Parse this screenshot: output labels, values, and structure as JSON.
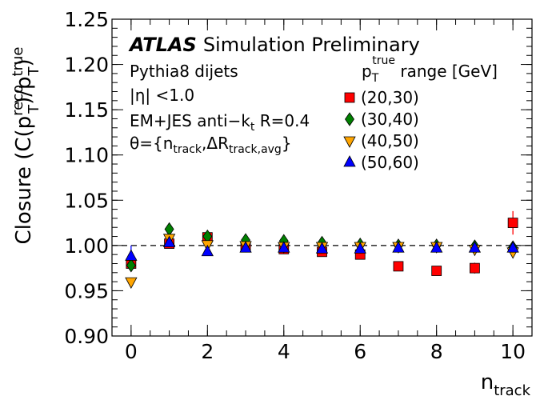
{
  "chart_data": {
    "type": "scatter",
    "xlabel_main": "n",
    "xlabel_sub": "track",
    "ylabel": {
      "prefix": "Closure (C(p",
      "sub1": "T",
      "sup1": "reco",
      "mid": ")/p",
      "sub2": "T",
      "sup2": "true",
      "suffix": ")"
    },
    "xlim": [
      -0.5,
      10.5
    ],
    "ylim": [
      0.9,
      1.25
    ],
    "x_ticks": [
      "0",
      "2",
      "4",
      "6",
      "8",
      "10"
    ],
    "y_ticks": [
      "0.90",
      "0.95",
      "1.00",
      "1.05",
      "1.10",
      "1.15",
      "1.20",
      "1.25"
    ],
    "reference_line": 1.0,
    "experiment": "ATLAS",
    "status": "Simulation Preliminary",
    "annotations": {
      "line1": "Pythia8 dijets",
      "line2_pre": "|η| <1.0",
      "line3_pre": "EM+JES anti−k",
      "line3_sub": "t",
      "line3_post": " R=0.4",
      "line4_pre": "θ={n",
      "line4_sub1": "track",
      "line4_mid": ",ΔR",
      "line4_sub2": "track,avg",
      "line4_post": "}"
    },
    "legend_title": {
      "pre": "p",
      "sub": "T",
      "sup": "true",
      "post": " range [GeV]"
    },
    "series": [
      {
        "name": "(20,30)",
        "marker": "square",
        "color": "#ff0000",
        "x": [
          0,
          1,
          2,
          3,
          4,
          5,
          6,
          7,
          8,
          9,
          10
        ],
        "y": [
          0.98,
          1.002,
          1.009,
          0.998,
          0.996,
          0.993,
          0.99,
          0.977,
          0.972,
          0.975,
          1.025
        ],
        "err": [
          0.004,
          0.002,
          0.002,
          0.002,
          0.002,
          0.002,
          0.002,
          0.002,
          0.002,
          0.006,
          0.013
        ]
      },
      {
        "name": "(30,40)",
        "marker": "diamond",
        "color": "#008000",
        "x": [
          0,
          1,
          2,
          3,
          4,
          5,
          6,
          7,
          8,
          9,
          10
        ],
        "y": [
          0.978,
          1.018,
          1.01,
          1.006,
          1.005,
          1.003,
          1.001,
          1.0,
          1.0,
          0.999,
          0.998
        ],
        "err": [
          0.004,
          0.002,
          0.002,
          0.002,
          0.002,
          0.002,
          0.002,
          0.002,
          0.002,
          0.002,
          0.004
        ]
      },
      {
        "name": "(40,50)",
        "marker": "triangle-down",
        "color": "#ffa500",
        "x": [
          0,
          1,
          2,
          3,
          4,
          5,
          6,
          7,
          8,
          9,
          10
        ],
        "y": [
          0.96,
          1.008,
          1.001,
          1.0,
          0.999,
          0.999,
          0.999,
          0.999,
          0.999,
          0.996,
          0.993
        ],
        "err": [
          0.004,
          0.002,
          0.002,
          0.002,
          0.002,
          0.002,
          0.002,
          0.002,
          0.002,
          0.002,
          0.004
        ]
      },
      {
        "name": "(50,60)",
        "marker": "triangle-up",
        "color": "#0000ff",
        "x": [
          0,
          1,
          2,
          3,
          4,
          5,
          6,
          7,
          8,
          9,
          10
        ],
        "y": [
          0.988,
          1.003,
          0.993,
          0.997,
          0.997,
          0.996,
          0.996,
          0.997,
          0.997,
          0.997,
          0.997
        ],
        "err": [
          0.012,
          0.002,
          0.002,
          0.002,
          0.002,
          0.002,
          0.002,
          0.002,
          0.002,
          0.002,
          0.002
        ]
      }
    ]
  }
}
